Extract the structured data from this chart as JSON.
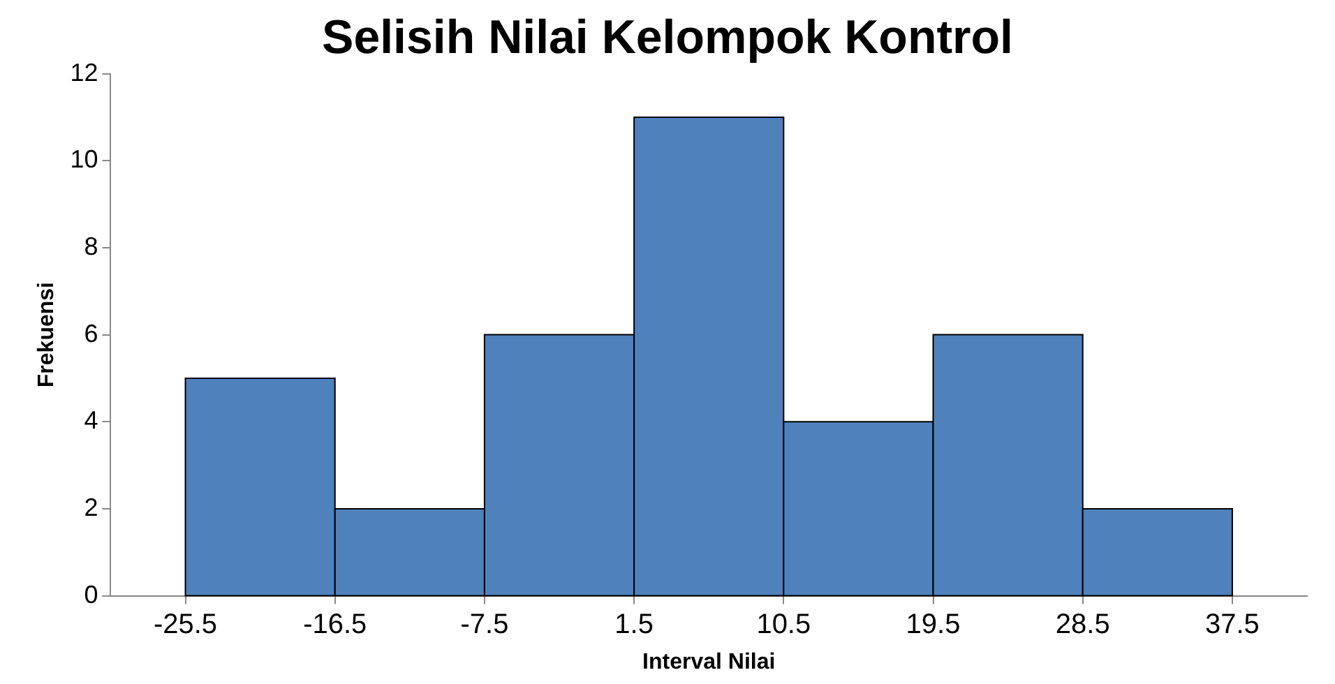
{
  "chart_data": {
    "type": "histogram",
    "title": "Selisih Nilai Kelompok Kontrol",
    "xlabel": "Interval Nilai",
    "ylabel": "Frekuensi",
    "bins": [
      -25.5,
      -16.5,
      -7.5,
      1.5,
      10.5,
      19.5,
      28.5,
      37.5
    ],
    "values": [
      5,
      2,
      6,
      11,
      4,
      6,
      2
    ],
    "color": "#4f81bd",
    "xlim": [
      -30,
      42
    ],
    "xticks": [
      -25.5,
      -16.5,
      -7.5,
      1.5,
      10.5,
      19.5,
      28.5,
      37.5
    ],
    "ylim": [
      0,
      12
    ],
    "yticks": [
      0,
      2,
      4,
      6,
      8,
      10,
      12
    ],
    "grid": false,
    "legend": false
  }
}
